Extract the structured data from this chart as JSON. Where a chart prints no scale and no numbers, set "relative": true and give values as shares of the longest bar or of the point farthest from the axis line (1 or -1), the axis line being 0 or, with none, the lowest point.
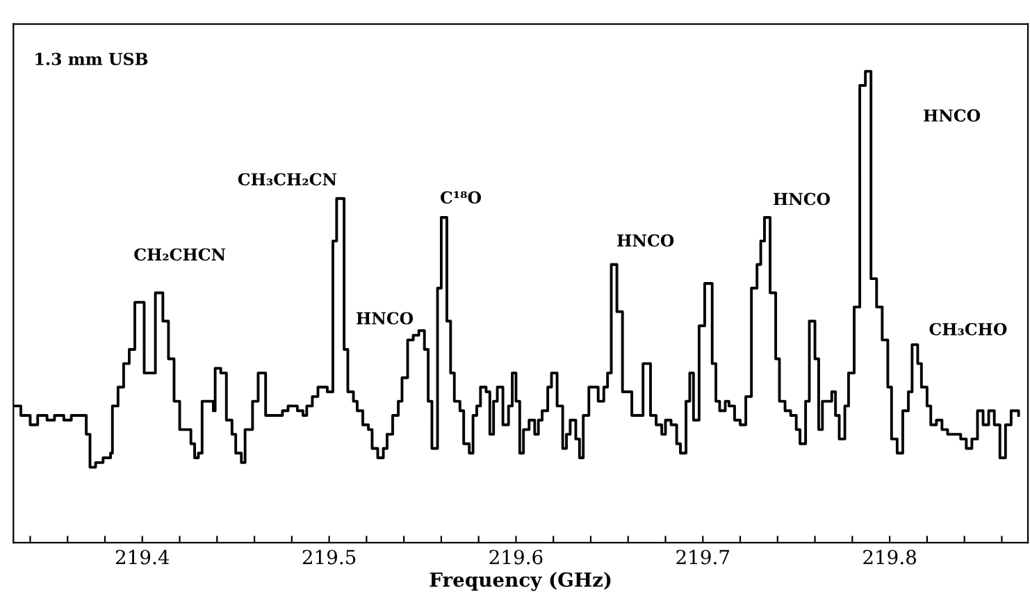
{
  "chart_data": {
    "type": "step",
    "relative": true,
    "xlabel": "Frequency (GHz)",
    "xlim": [
      219.331,
      219.874
    ],
    "xticks": [
      {
        "value": 219.34,
        "label": null
      },
      {
        "value": 219.36,
        "label": null
      },
      {
        "value": 219.38,
        "label": null
      },
      219.4,
      {
        "value": 219.42,
        "label": null
      },
      {
        "value": 219.44,
        "label": null
      },
      {
        "value": 219.46,
        "label": null
      },
      {
        "value": 219.48,
        "label": null
      },
      219.5,
      {
        "value": 219.52,
        "label": null
      },
      {
        "value": 219.54,
        "label": null
      },
      {
        "value": 219.56,
        "label": null
      },
      {
        "value": 219.58,
        "label": null
      },
      219.6,
      {
        "value": 219.62,
        "label": null
      },
      {
        "value": 219.64,
        "label": null
      },
      {
        "value": 219.66,
        "label": null
      },
      {
        "value": 219.68,
        "label": null
      },
      219.7,
      {
        "value": 219.72,
        "label": null
      },
      {
        "value": 219.74,
        "label": null
      },
      {
        "value": 219.76,
        "label": null
      },
      {
        "value": 219.78,
        "label": null
      },
      219.8,
      {
        "value": 219.82,
        "label": null
      },
      {
        "value": 219.84,
        "label": null
      },
      {
        "value": 219.86,
        "label": null
      }
    ],
    "grid": false,
    "legend": false,
    "series": [
      {
        "color": "#000000",
        "x": [
          219.331,
          219.335,
          219.34,
          219.344,
          219.349,
          219.353,
          219.358,
          219.362,
          219.367,
          219.37,
          219.372,
          219.375,
          219.379,
          219.383,
          219.384,
          219.387,
          219.39,
          219.393,
          219.396,
          219.401,
          219.407,
          219.411,
          219.414,
          219.417,
          219.42,
          219.423,
          219.426,
          219.428,
          219.43,
          219.432,
          219.435,
          219.438,
          219.439,
          219.442,
          219.445,
          219.448,
          219.45,
          219.453,
          219.455,
          219.459,
          219.462,
          219.466,
          219.471,
          219.475,
          219.478,
          219.483,
          219.486,
          219.488,
          219.491,
          219.494,
          219.499,
          219.502,
          219.504,
          219.508,
          219.51,
          219.513,
          219.515,
          219.518,
          219.521,
          219.523,
          219.526,
          219.529,
          219.531,
          219.534,
          219.537,
          219.539,
          219.542,
          219.545,
          219.548,
          219.551,
          219.553,
          219.555,
          219.558,
          219.56,
          219.563,
          219.565,
          219.567,
          219.57,
          219.572,
          219.575,
          219.577,
          219.579,
          219.581,
          219.584,
          219.586,
          219.588,
          219.59,
          219.593,
          219.596,
          219.598,
          219.6,
          219.602,
          219.604,
          219.607,
          219.61,
          219.612,
          219.614,
          219.617,
          219.619,
          219.622,
          219.625,
          219.627,
          219.629,
          219.632,
          219.634,
          219.636,
          219.639,
          219.642,
          219.644,
          219.647,
          219.649,
          219.651,
          219.654,
          219.657,
          219.659,
          219.662,
          219.665,
          219.668,
          219.67,
          219.672,
          219.675,
          219.678,
          219.68,
          219.683,
          219.686,
          219.688,
          219.691,
          219.693,
          219.695,
          219.698,
          219.701,
          219.705,
          219.707,
          219.709,
          219.712,
          219.714,
          219.717,
          219.72,
          219.723,
          219.726,
          219.729,
          219.731,
          219.733,
          219.736,
          219.739,
          219.741,
          219.744,
          219.747,
          219.75,
          219.752,
          219.755,
          219.757,
          219.76,
          219.762,
          219.764,
          219.767,
          219.769,
          219.771,
          219.773,
          219.776,
          219.778,
          219.781,
          219.784,
          219.787,
          219.79,
          219.793,
          219.796,
          219.799,
          219.801,
          219.804,
          219.807,
          219.81,
          219.812,
          219.815,
          219.817,
          219.82,
          219.822,
          219.825,
          219.828,
          219.831,
          219.835,
          219.838,
          219.841,
          219.844,
          219.847,
          219.85,
          219.853,
          219.856,
          219.859,
          219.862,
          219.865,
          219.869
        ],
        "values": [
          0.29,
          0.27,
          0.25,
          0.27,
          0.26,
          0.27,
          0.26,
          0.27,
          0.27,
          0.23,
          0.16,
          0.17,
          0.18,
          0.19,
          0.29,
          0.33,
          0.38,
          0.41,
          0.51,
          0.36,
          0.53,
          0.47,
          0.39,
          0.3,
          0.24,
          0.24,
          0.21,
          0.18,
          0.19,
          0.3,
          0.3,
          0.28,
          0.37,
          0.36,
          0.26,
          0.23,
          0.19,
          0.17,
          0.24,
          0.3,
          0.36,
          0.27,
          0.27,
          0.28,
          0.29,
          0.28,
          0.27,
          0.29,
          0.31,
          0.33,
          0.32,
          0.64,
          0.73,
          0.41,
          0.32,
          0.3,
          0.28,
          0.25,
          0.24,
          0.2,
          0.18,
          0.2,
          0.23,
          0.27,
          0.3,
          0.35,
          0.43,
          0.44,
          0.45,
          0.41,
          0.3,
          0.2,
          0.54,
          0.69,
          0.47,
          0.36,
          0.3,
          0.28,
          0.21,
          0.19,
          0.27,
          0.29,
          0.33,
          0.32,
          0.23,
          0.3,
          0.33,
          0.25,
          0.29,
          0.36,
          0.3,
          0.19,
          0.24,
          0.26,
          0.23,
          0.26,
          0.28,
          0.33,
          0.36,
          0.29,
          0.2,
          0.23,
          0.26,
          0.22,
          0.18,
          0.27,
          0.33,
          0.33,
          0.3,
          0.33,
          0.36,
          0.59,
          0.49,
          0.32,
          0.32,
          0.27,
          0.27,
          0.38,
          0.38,
          0.27,
          0.25,
          0.23,
          0.26,
          0.25,
          0.21,
          0.19,
          0.3,
          0.36,
          0.26,
          0.46,
          0.55,
          0.38,
          0.3,
          0.28,
          0.3,
          0.29,
          0.26,
          0.25,
          0.31,
          0.54,
          0.59,
          0.64,
          0.69,
          0.53,
          0.39,
          0.3,
          0.28,
          0.27,
          0.24,
          0.21,
          0.3,
          0.47,
          0.39,
          0.24,
          0.3,
          0.3,
          0.32,
          0.27,
          0.22,
          0.29,
          0.36,
          0.5,
          0.97,
          1,
          0.56,
          0.5,
          0.43,
          0.33,
          0.22,
          0.19,
          0.28,
          0.32,
          0.42,
          0.38,
          0.33,
          0.29,
          0.25,
          0.26,
          0.24,
          0.23,
          0.23,
          0.22,
          0.2,
          0.22,
          0.28,
          0.25,
          0.28,
          0.25,
          0.18,
          0.25,
          0.28,
          0.27
        ]
      }
    ],
    "annotations": [
      "1.3 mm USB",
      "CH₂CHCN",
      "CH₃CH₂CN",
      "HNCO",
      "C¹⁸O",
      "HNCO",
      "HNCO",
      "HNCO",
      "CH₃CHO"
    ]
  }
}
